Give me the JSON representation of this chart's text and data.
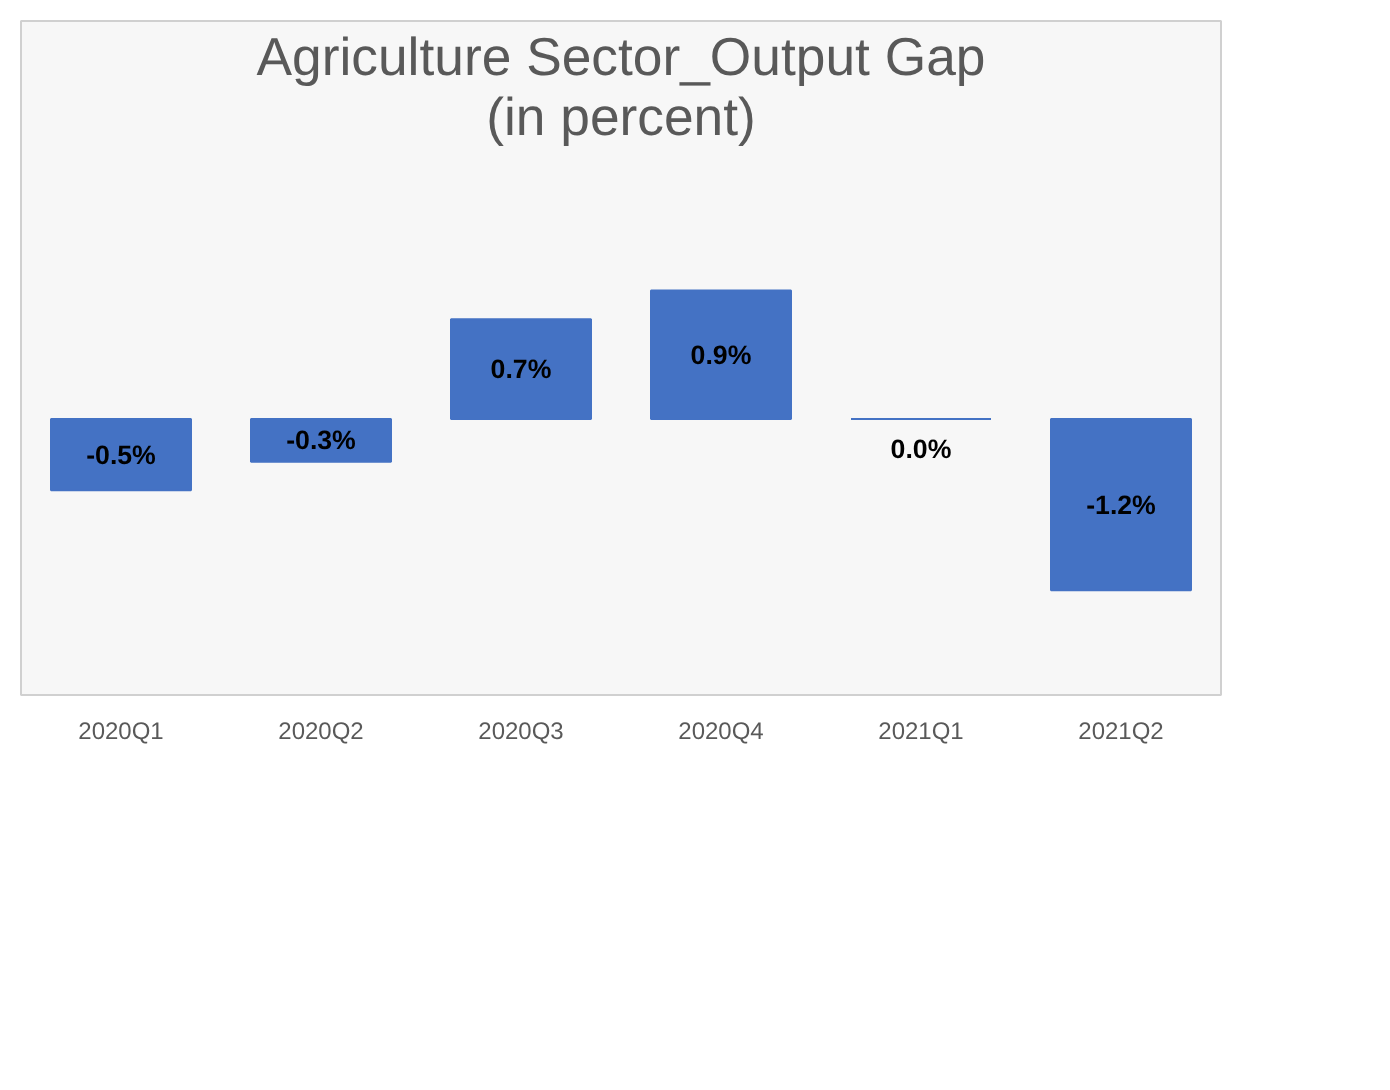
{
  "chart_data": {
    "type": "bar",
    "title": "Agriculture Sector_Output Gap\n(in percent)",
    "categories": [
      "2020Q1",
      "2020Q2",
      "2020Q3",
      "2020Q4",
      "2021Q1",
      "2021Q2"
    ],
    "values": [
      -0.5,
      -0.3,
      0.7,
      0.9,
      0.0,
      -1.2
    ],
    "value_labels": [
      "-0.5%",
      "-0.3%",
      "0.7%",
      "0.9%",
      "0.0%",
      "-1.2%"
    ],
    "color": "#4472c4",
    "grid": false
  }
}
